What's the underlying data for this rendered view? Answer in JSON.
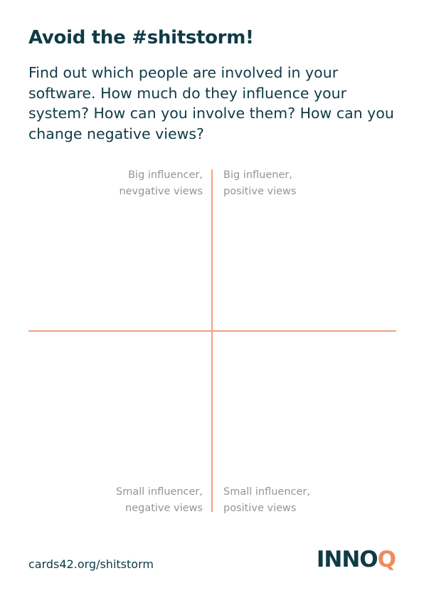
{
  "card": {
    "title": "Avoid the #shitstorm!",
    "description": "Find out which people are involved in your software. How much do they influence your system? How can you involve them? How can you change negative views?"
  },
  "matrix": {
    "top_left": {
      "line1": "Big influencer,",
      "line2": "nevgative views"
    },
    "top_right": {
      "line1": "Big influener,",
      "line2": "positive views"
    },
    "bottom_left": {
      "line1": "Small influencer,",
      "line2": "negative views"
    },
    "bottom_right": {
      "line1": "Small influencer,",
      "line2": "positive views"
    }
  },
  "footer": {
    "link": "cards42.org/shitstorm",
    "logo_main": "INNO",
    "logo_accent": "Q"
  },
  "colors": {
    "heading": "#0f3b46",
    "axis": "#f4a07c",
    "label": "#8f9699",
    "brand_accent": "#f08a5d"
  }
}
